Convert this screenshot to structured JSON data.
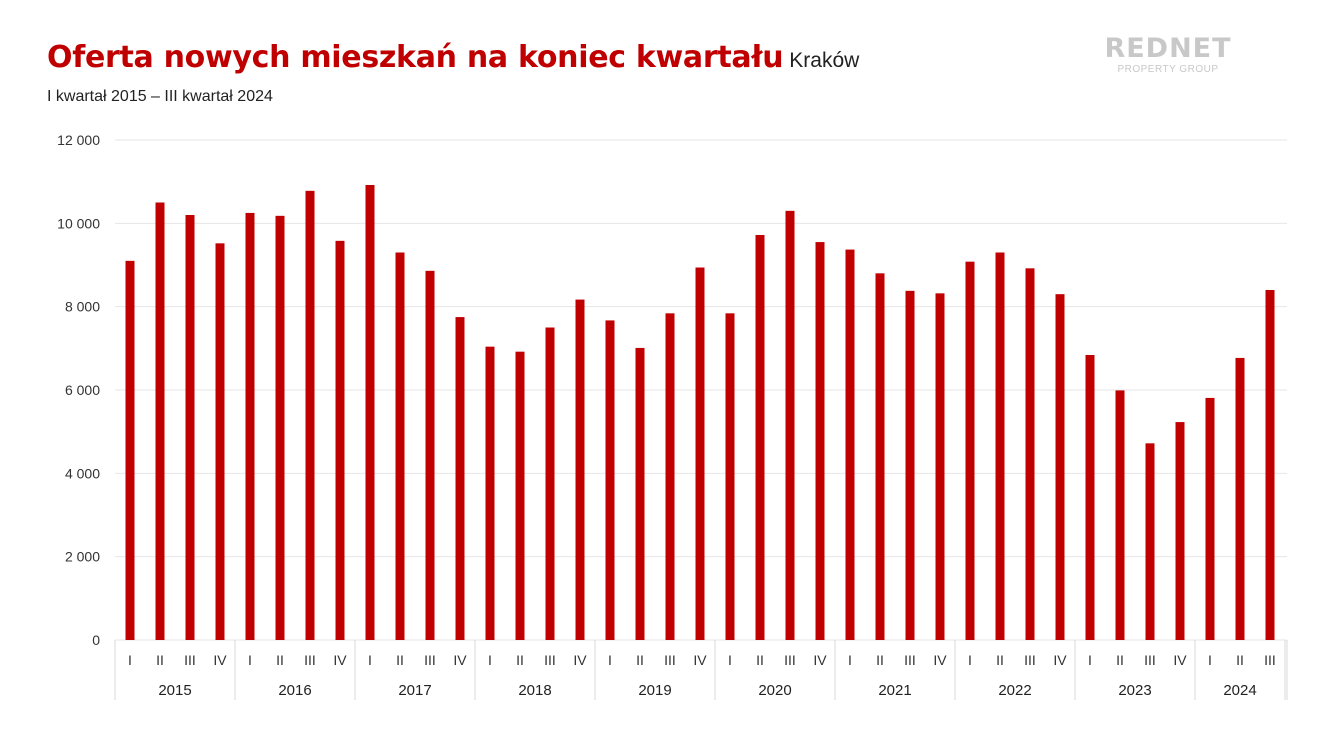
{
  "header": {
    "title": "Oferta nowych mieszkań na koniec kwartału",
    "city": "Kraków",
    "subtitle": "I kwartał 2015 – III kwartał 2024"
  },
  "logo": {
    "main": "REDNET",
    "sub": "PROPERTY GROUP"
  },
  "colors": {
    "bar": "#c00000",
    "title": "#c00000",
    "grid": "#e6e6e6"
  },
  "chart_data": {
    "type": "bar",
    "title": "Oferta nowych mieszkań na koniec kwartału",
    "subtitle": "I kwartał 2015 – III kwartał 2024",
    "xlabel": "",
    "ylabel": "",
    "ylim": [
      0,
      12000
    ],
    "yticks": [
      0,
      2000,
      4000,
      6000,
      8000,
      10000,
      12000
    ],
    "ytick_labels": [
      "0",
      "2 000",
      "4 000",
      "6 000",
      "8 000",
      "10 000",
      "12 000"
    ],
    "grid": true,
    "years": [
      {
        "year": "2015",
        "quarters": [
          "I",
          "II",
          "III",
          "IV"
        ]
      },
      {
        "year": "2016",
        "quarters": [
          "I",
          "II",
          "III",
          "IV"
        ]
      },
      {
        "year": "2017",
        "quarters": [
          "I",
          "II",
          "III",
          "IV"
        ]
      },
      {
        "year": "2018",
        "quarters": [
          "I",
          "II",
          "III",
          "IV"
        ]
      },
      {
        "year": "2019",
        "quarters": [
          "I",
          "II",
          "III",
          "IV"
        ]
      },
      {
        "year": "2020",
        "quarters": [
          "I",
          "II",
          "III",
          "IV"
        ]
      },
      {
        "year": "2021",
        "quarters": [
          "I",
          "II",
          "III",
          "IV"
        ]
      },
      {
        "year": "2022",
        "quarters": [
          "I",
          "II",
          "III",
          "IV"
        ]
      },
      {
        "year": "2023",
        "quarters": [
          "I",
          "II",
          "III",
          "IV"
        ]
      },
      {
        "year": "2024",
        "quarters": [
          "I",
          "II",
          "III"
        ]
      }
    ],
    "values": [
      9100,
      10500,
      10200,
      9520,
      10250,
      10180,
      10780,
      9580,
      10920,
      9300,
      8860,
      7750,
      7040,
      6920,
      7500,
      8170,
      7670,
      7010,
      7840,
      8940,
      7840,
      9720,
      10300,
      9550,
      9370,
      8800,
      8380,
      8320,
      9080,
      9300,
      8920,
      8300,
      6840,
      5990,
      4720,
      5230,
      5810,
      6770,
      8400
    ]
  }
}
